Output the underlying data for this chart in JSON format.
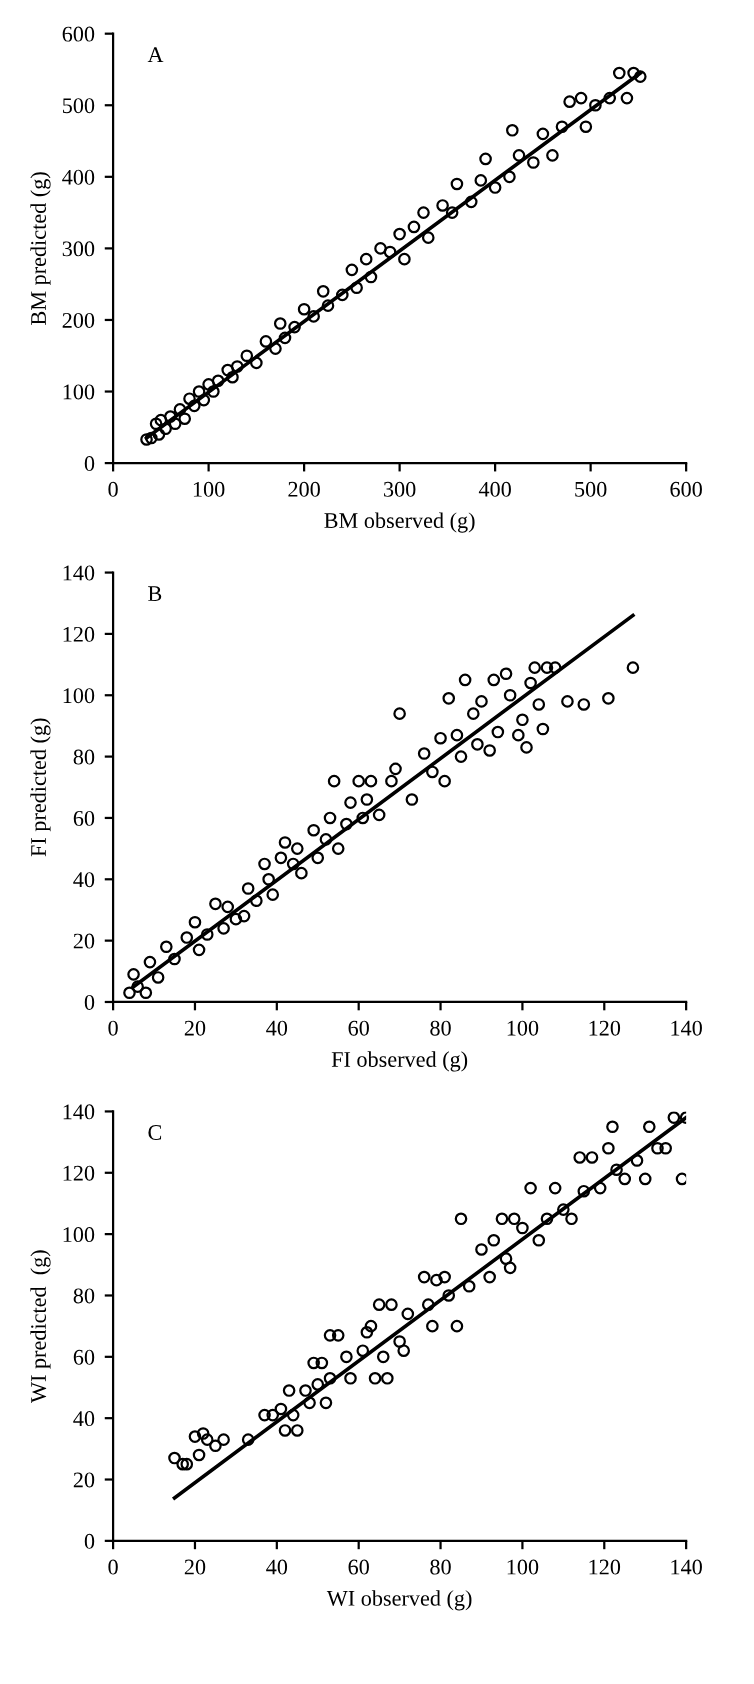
{
  "chart_data": [
    {
      "type": "scatter",
      "xlabel": "BM observed (g)",
      "ylabel": "BM predicted (g)",
      "annotations": [
        "A"
      ],
      "xlim": [
        0,
        600
      ],
      "ylim": [
        0,
        600
      ],
      "xticks": [
        0,
        100,
        200,
        300,
        400,
        500,
        600
      ],
      "yticks": [
        0,
        100,
        200,
        300,
        400,
        500,
        600
      ],
      "series": [
        {
          "marker": "circle",
          "color": "#000000",
          "x": [
            35,
            40,
            45,
            48,
            50,
            55,
            60,
            65,
            70,
            75,
            80,
            85,
            90,
            95,
            100,
            105,
            110,
            120,
            125,
            130,
            140,
            150,
            160,
            170,
            175,
            180,
            190,
            200,
            210,
            220,
            225,
            240,
            250,
            255,
            265,
            270,
            280,
            290,
            300,
            305,
            315,
            325,
            330,
            345,
            355,
            360,
            375,
            385,
            390,
            400,
            415,
            418,
            425,
            440,
            450,
            460,
            470,
            478,
            490,
            495,
            505,
            520,
            530,
            538,
            545,
            552
          ],
          "values": [
            33,
            35,
            55,
            40,
            60,
            48,
            65,
            55,
            75,
            62,
            90,
            80,
            100,
            88,
            110,
            100,
            115,
            130,
            120,
            135,
            150,
            140,
            170,
            160,
            195,
            175,
            190,
            215,
            205,
            240,
            220,
            235,
            270,
            245,
            285,
            260,
            300,
            295,
            320,
            285,
            330,
            350,
            315,
            360,
            350,
            390,
            365,
            395,
            425,
            385,
            400,
            465,
            430,
            420,
            460,
            430,
            470,
            505,
            510,
            470,
            500,
            510,
            545,
            510,
            545,
            540
          ]
        },
        {
          "type": "line",
          "marker": "none",
          "color": "#000000",
          "x": [
            35,
            552
          ],
          "values": [
            35,
            545
          ]
        }
      ]
    },
    {
      "type": "scatter",
      "xlabel": "FI observed (g)",
      "ylabel": "FI predicted (g)",
      "annotations": [
        "B"
      ],
      "xlim": [
        0,
        140
      ],
      "ylim": [
        0,
        140
      ],
      "xticks": [
        0,
        20,
        40,
        60,
        80,
        100,
        120,
        140
      ],
      "yticks": [
        0,
        20,
        40,
        60,
        80,
        100,
        120,
        140
      ],
      "series": [
        {
          "marker": "circle",
          "color": "#000000",
          "x": [
            4,
            5,
            6,
            8,
            9,
            11,
            13,
            15,
            18,
            20,
            21,
            23,
            25,
            27,
            28,
            30,
            32,
            33,
            35,
            37,
            38,
            39,
            41,
            42,
            44,
            45,
            46,
            49,
            50,
            52,
            53,
            54,
            55,
            57,
            58,
            60,
            61,
            62,
            63,
            65,
            68,
            69,
            70,
            73,
            76,
            78,
            80,
            81,
            82,
            84,
            85,
            86,
            88,
            89,
            90,
            92,
            93,
            94,
            96,
            97,
            99,
            100,
            101,
            102,
            103,
            104,
            105,
            106,
            108,
            111,
            115,
            121,
            127
          ],
          "values": [
            3,
            9,
            5,
            3,
            13,
            8,
            18,
            14,
            21,
            26,
            17,
            22,
            32,
            24,
            31,
            27,
            28,
            37,
            33,
            45,
            40,
            35,
            47,
            52,
            45,
            50,
            42,
            56,
            47,
            53,
            60,
            72,
            50,
            58,
            65,
            72,
            60,
            66,
            72,
            61,
            72,
            76,
            94,
            66,
            81,
            75,
            86,
            72,
            99,
            87,
            80,
            105,
            94,
            84,
            98,
            82,
            105,
            88,
            107,
            100,
            87,
            92,
            83,
            104,
            109,
            97,
            89,
            109,
            109,
            98,
            97,
            99,
            109
          ]
        },
        {
          "type": "line",
          "marker": "none",
          "color": "#000000",
          "x": [
            5,
            127
          ],
          "values": [
            5,
            126
          ]
        }
      ]
    },
    {
      "type": "scatter",
      "xlabel": "WI observed (g)",
      "ylabel": "WI predicted  (g)",
      "annotations": [
        "C"
      ],
      "xlim": [
        0,
        140
      ],
      "ylim": [
        0,
        140
      ],
      "xticks": [
        0,
        20,
        40,
        60,
        80,
        100,
        120,
        140
      ],
      "yticks": [
        0,
        20,
        40,
        60,
        80,
        100,
        120,
        140
      ],
      "series": [
        {
          "marker": "circle",
          "color": "#000000",
          "x": [
            15,
            17,
            18,
            20,
            21,
            22,
            23,
            25,
            27,
            33,
            37,
            39,
            41,
            42,
            43,
            44,
            45,
            47,
            48,
            49,
            50,
            51,
            52,
            53,
            53,
            55,
            57,
            58,
            61,
            62,
            63,
            64,
            65,
            66,
            67,
            68,
            70,
            71,
            72,
            76,
            77,
            78,
            79,
            81,
            82,
            84,
            85,
            87,
            90,
            92,
            93,
            95,
            96,
            97,
            98,
            100,
            102,
            104,
            106,
            108,
            110,
            112,
            114,
            115,
            117,
            119,
            121,
            122,
            123,
            125,
            128,
            130,
            131,
            133,
            135,
            137,
            139,
            140
          ],
          "values": [
            27,
            25,
            25,
            34,
            28,
            35,
            33,
            31,
            33,
            33,
            41,
            41,
            43,
            36,
            49,
            41,
            36,
            49,
            45,
            58,
            51,
            58,
            45,
            67,
            53,
            67,
            60,
            53,
            62,
            68,
            70,
            53,
            77,
            60,
            53,
            77,
            65,
            62,
            74,
            86,
            77,
            70,
            85,
            86,
            80,
            70,
            105,
            83,
            95,
            86,
            98,
            105,
            92,
            89,
            105,
            102,
            115,
            98,
            105,
            115,
            108,
            105,
            125,
            114,
            125,
            115,
            128,
            135,
            121,
            118,
            124,
            118,
            135,
            128,
            128,
            138,
            118,
            138
          ]
        },
        {
          "type": "line",
          "marker": "none",
          "color": "#000000",
          "x": [
            15,
            140
          ],
          "values": [
            14,
            138
          ]
        }
      ]
    }
  ]
}
